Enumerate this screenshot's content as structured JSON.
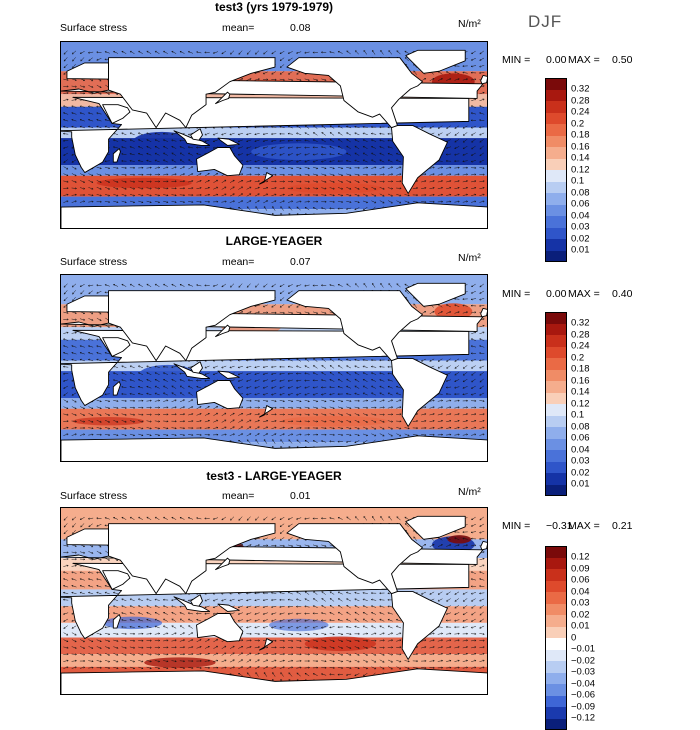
{
  "season": "DJF",
  "colors": {
    "ocean_blue": "#2f63d8",
    "ocean_red": "#e2583a",
    "land": "#ffffff",
    "coast": "#000000"
  },
  "panels": [
    {
      "title": "test3 (yrs 1979-1979)",
      "variable": "Surface stress",
      "mean_label": "mean=",
      "mean_value": "0.08",
      "units": "N/m²",
      "min_label": "MIN =",
      "min_value": "0.00",
      "max_label": "MAX =",
      "max_value": "0.50",
      "levels": [
        "0.32",
        "0.28",
        "0.24",
        "0.2",
        "0.18",
        "0.16",
        "0.14",
        "0.12",
        "0.1",
        "0.08",
        "0.06",
        "0.04",
        "0.03",
        "0.02",
        "0.01"
      ],
      "level_colors": [
        "#7a0a0a",
        "#a8180f",
        "#c9301b",
        "#de4a2c",
        "#ea6a45",
        "#f08c66",
        "#f5ad8d",
        "#f9cfb8",
        "#dfe8f8",
        "#b8cdf2",
        "#8faeec",
        "#6b90e3",
        "#4a72d9",
        "#2f55c9",
        "#1533a6",
        "#0a1f7a"
      ]
    },
    {
      "title": "LARGE-YEAGER",
      "variable": "Surface stress",
      "mean_label": "mean=",
      "mean_value": "0.07",
      "units": "N/m²",
      "min_label": "MIN =",
      "min_value": "0.00",
      "max_label": "MAX =",
      "max_value": "0.40",
      "levels": [
        "0.32",
        "0.28",
        "0.24",
        "0.2",
        "0.18",
        "0.16",
        "0.14",
        "0.12",
        "0.1",
        "0.08",
        "0.06",
        "0.04",
        "0.03",
        "0.02",
        "0.01"
      ],
      "level_colors": [
        "#7a0a0a",
        "#a8180f",
        "#c9301b",
        "#de4a2c",
        "#ea6a45",
        "#f08c66",
        "#f5ad8d",
        "#f9cfb8",
        "#dfe8f8",
        "#b8cdf2",
        "#8faeec",
        "#6b90e3",
        "#4a72d9",
        "#2f55c9",
        "#1533a6",
        "#0a1f7a"
      ]
    },
    {
      "title": "test3 - LARGE-YEAGER",
      "variable": "Surface stress",
      "mean_label": "mean=",
      "mean_value": "0.01",
      "units": "N/m²",
      "min_label": "MIN =",
      "min_value": "−0.31",
      "max_label": "MAX =",
      "max_value": "0.21",
      "levels": [
        "0.12",
        "0.09",
        "0.06",
        "0.04",
        "0.03",
        "0.02",
        "0.01",
        "0",
        "−0.01",
        "−0.02",
        "−0.03",
        "−0.04",
        "−0.06",
        "−0.09",
        "−0.12"
      ],
      "level_colors": [
        "#7a0a0a",
        "#a8180f",
        "#c9301b",
        "#de4a2c",
        "#ea6a45",
        "#f08c66",
        "#f5ad8d",
        "#f9cfb8",
        "#ffffff",
        "#dfe8f8",
        "#b8cdf2",
        "#8faeec",
        "#6b90e3",
        "#3e66d6",
        "#1a3aae",
        "#0a1f7a"
      ]
    }
  ]
}
